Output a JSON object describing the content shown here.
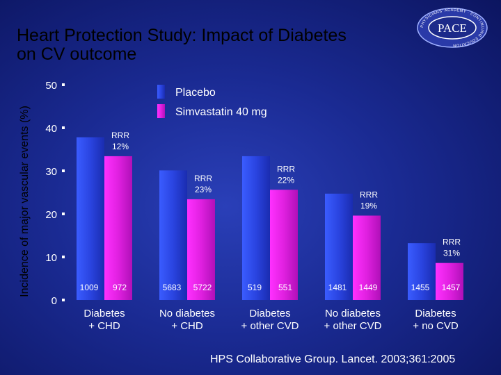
{
  "page": {
    "title": "Heart Protection Study: Impact of Diabetes\non CV outcome"
  },
  "logo": {
    "text": "PACE",
    "ring_text": "PHYSICIANS' ACADEMY · CONTINUING EDUCATION"
  },
  "citation": "HPS Collaborative Group. Lancet. 2003;361:2005",
  "colors": {
    "placebo": "#2f4fe8",
    "simvastatin": "#e020e0",
    "background": "#1a2a92"
  },
  "chart_data": {
    "type": "bar",
    "title": "Heart Protection Study: Impact of Diabetes on CV outcome",
    "ylabel": "Incidence of major vascular events (%)",
    "xlabel": "",
    "ylim": [
      0,
      50
    ],
    "yticks": [
      "0",
      "10",
      "20",
      "30",
      "40",
      "50"
    ],
    "grid": false,
    "legend_position": "top-center",
    "categories": [
      "Diabetes\n+ CHD",
      "No diabetes\n+ CHD",
      "Diabetes\n+ other CVD",
      "No diabetes\n+ other CVD",
      "Diabetes\n+ no CVD"
    ],
    "series": [
      {
        "name": "Placebo",
        "color": "#2f4fe8",
        "values": [
          37.8,
          30.1,
          33.4,
          24.7,
          13.2
        ],
        "n": [
          "1009",
          "5683",
          "519",
          "1481",
          "1455"
        ]
      },
      {
        "name": "Simvastatin 40 mg",
        "color": "#e020e0",
        "values": [
          33.4,
          23.4,
          25.6,
          19.6,
          8.6
        ],
        "n": [
          "972",
          "5722",
          "551",
          "1449",
          "1457"
        ]
      }
    ],
    "annotations": [
      "RRR\n12%",
      "RRR\n23%",
      "RRR\n22%",
      "RRR\n19%",
      "RRR\n31%"
    ]
  }
}
